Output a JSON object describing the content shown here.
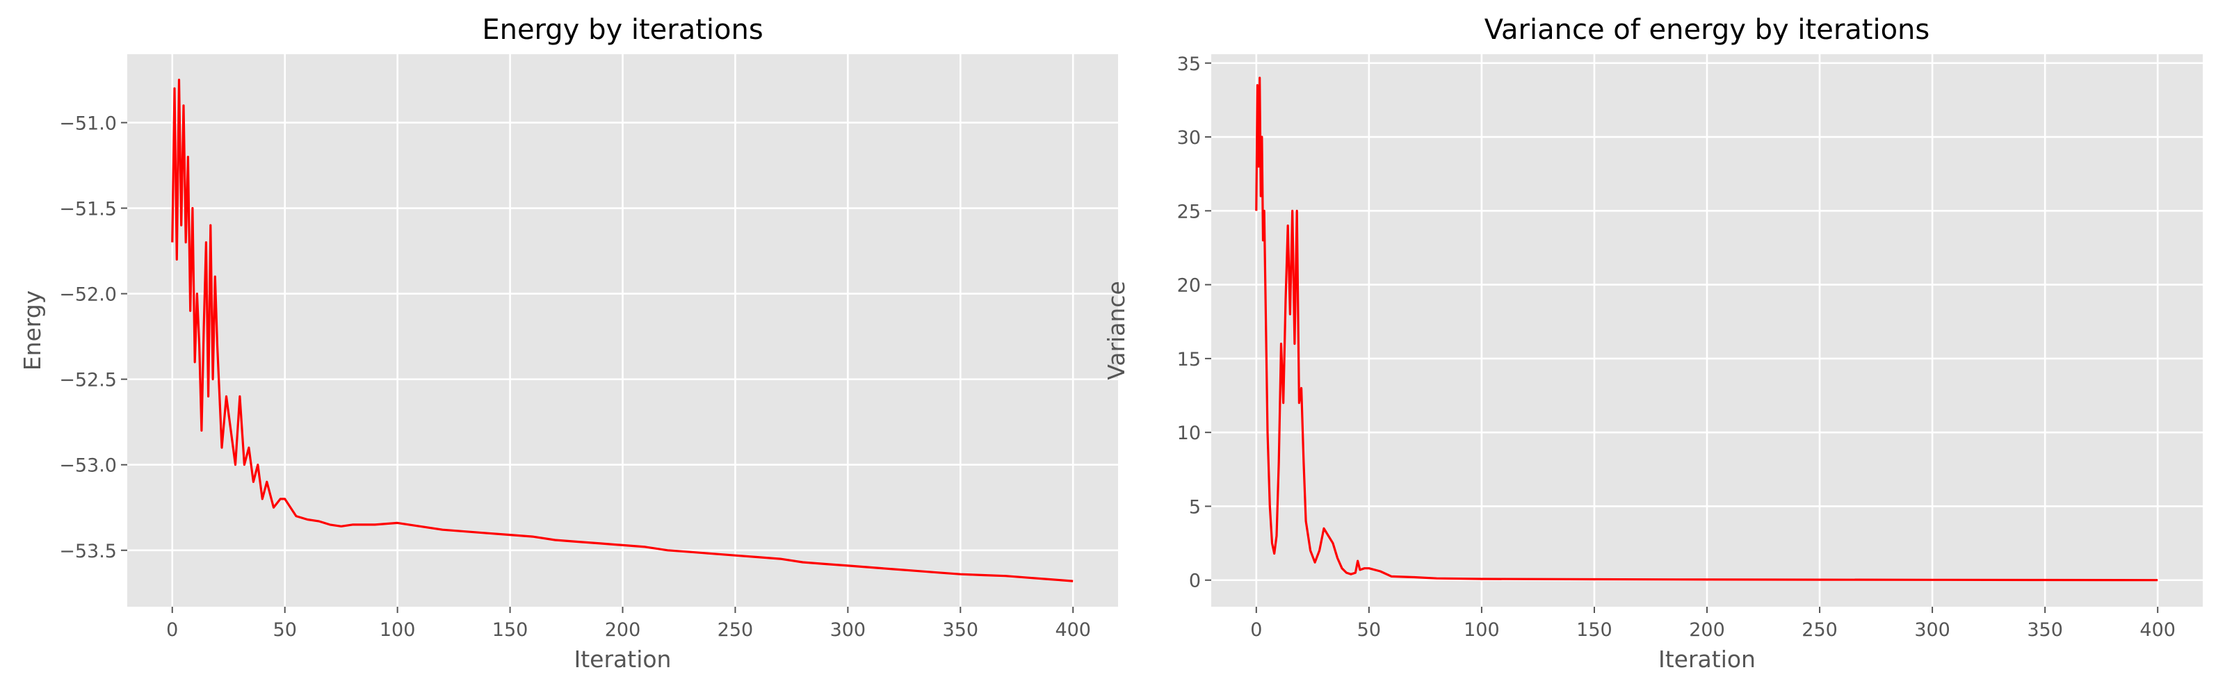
{
  "chart_data": [
    {
      "type": "line",
      "title": "Energy by iterations",
      "xlabel": "Iteration",
      "ylabel": "Energy",
      "xlim": [
        -20,
        420
      ],
      "ylim": [
        -53.83,
        -50.6
      ],
      "xticks": [
        0,
        50,
        100,
        150,
        200,
        250,
        300,
        350,
        400
      ],
      "yticks": [
        -51.0,
        -51.5,
        -52.0,
        -52.5,
        -53.0,
        -53.5
      ],
      "ytick_labels": [
        "−51.0",
        "−51.5",
        "−52.0",
        "−52.5",
        "−53.0",
        "−53.5"
      ],
      "grid": true,
      "series": [
        {
          "color": "#ff0000",
          "x": [
            0,
            1,
            2,
            3,
            4,
            5,
            6,
            7,
            8,
            9,
            10,
            11,
            12,
            13,
            14,
            15,
            16,
            17,
            18,
            19,
            20,
            22,
            24,
            26,
            28,
            30,
            32,
            34,
            36,
            38,
            40,
            42,
            45,
            48,
            50,
            55,
            60,
            65,
            70,
            75,
            80,
            90,
            100,
            110,
            120,
            130,
            140,
            150,
            160,
            170,
            180,
            190,
            200,
            210,
            220,
            230,
            240,
            250,
            260,
            270,
            280,
            290,
            300,
            310,
            320,
            330,
            340,
            350,
            360,
            370,
            380,
            390,
            400
          ],
          "y": [
            -51.7,
            -50.8,
            -51.8,
            -50.75,
            -51.6,
            -50.9,
            -51.7,
            -51.2,
            -52.1,
            -51.5,
            -52.4,
            -52.0,
            -52.3,
            -52.8,
            -52.2,
            -51.7,
            -52.6,
            -51.6,
            -52.5,
            -51.9,
            -52.3,
            -52.9,
            -52.6,
            -52.8,
            -53.0,
            -52.6,
            -53.0,
            -52.9,
            -53.1,
            -53.0,
            -53.2,
            -53.1,
            -53.25,
            -53.2,
            -53.2,
            -53.3,
            -53.32,
            -53.33,
            -53.35,
            -53.36,
            -53.35,
            -53.35,
            -53.34,
            -53.36,
            -53.38,
            -53.39,
            -53.4,
            -53.41,
            -53.42,
            -53.44,
            -53.45,
            -53.46,
            -53.47,
            -53.48,
            -53.5,
            -53.51,
            -53.52,
            -53.53,
            -53.54,
            -53.55,
            -53.57,
            -53.58,
            -53.59,
            -53.6,
            -53.61,
            -53.62,
            -53.63,
            -53.64,
            -53.645,
            -53.65,
            -53.66,
            -53.67,
            -53.68
          ]
        }
      ]
    },
    {
      "type": "line",
      "title": "Variance of energy by iterations",
      "xlabel": "Iteration",
      "ylabel": "Variance",
      "xlim": [
        -20,
        420
      ],
      "ylim": [
        -1.8,
        35.6
      ],
      "xticks": [
        0,
        50,
        100,
        150,
        200,
        250,
        300,
        350,
        400
      ],
      "yticks": [
        0,
        5,
        10,
        15,
        20,
        25,
        30,
        35
      ],
      "ytick_labels": [
        "0",
        "5",
        "10",
        "15",
        "20",
        "25",
        "30",
        "35"
      ],
      "grid": true,
      "series": [
        {
          "color": "#ff0000",
          "x": [
            0,
            0.5,
            1,
            1.5,
            2,
            2.5,
            3,
            3.5,
            4,
            5,
            6,
            7,
            8,
            9,
            10,
            11,
            12,
            13,
            14,
            15,
            16,
            17,
            18,
            19,
            20,
            21,
            22,
            24,
            26,
            28,
            30,
            32,
            34,
            36,
            38,
            40,
            42,
            44,
            45,
            46,
            48,
            50,
            55,
            60,
            70,
            80,
            100,
            150,
            200,
            250,
            300,
            350,
            400
          ],
          "y": [
            25,
            33.5,
            28,
            34,
            26,
            30,
            23,
            25,
            20,
            10,
            5,
            2.5,
            1.8,
            3,
            8,
            16,
            12,
            19,
            24,
            18,
            25,
            16,
            25,
            12,
            13,
            8,
            4,
            2,
            1.2,
            2,
            3.5,
            3,
            2.5,
            1.5,
            0.8,
            0.5,
            0.4,
            0.5,
            1.3,
            0.7,
            0.8,
            0.8,
            0.6,
            0.25,
            0.2,
            0.12,
            0.08,
            0.06,
            0.04,
            0.03,
            0.02,
            0.01,
            0.0
          ]
        }
      ]
    }
  ]
}
